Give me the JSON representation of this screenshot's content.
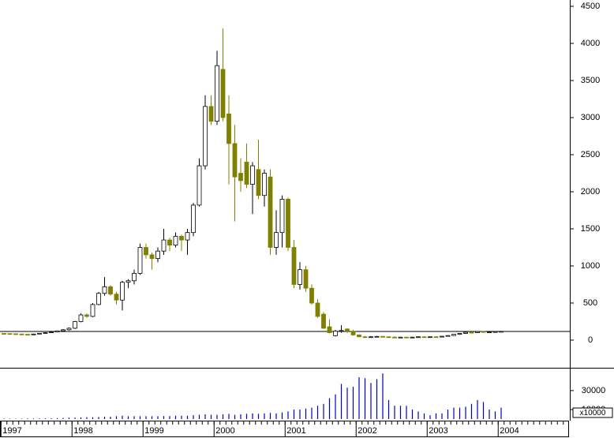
{
  "chart_data": {
    "type": "candlestick",
    "open": [
      90,
      88,
      86,
      82,
      78,
      75,
      82,
      92,
      100,
      110,
      125,
      140,
      160,
      250,
      340,
      320,
      480,
      630,
      720,
      620,
      540,
      780,
      800,
      900,
      1250,
      1150,
      1100,
      1200,
      1350,
      1280,
      1400,
      1350,
      1450,
      1820,
      2350,
      3150,
      2950,
      3650,
      3050,
      2650,
      2250,
      2400,
      2100,
      2300,
      1950,
      2200,
      1250,
      1450,
      1900,
      1250,
      750,
      950,
      700,
      500,
      350,
      180,
      60,
      120,
      150,
      120,
      70,
      45,
      40,
      45,
      50,
      45,
      40,
      35,
      40,
      35,
      40,
      45,
      40,
      45,
      42,
      52,
      62,
      78,
      90,
      105,
      100,
      115,
      105,
      110,
      115
    ],
    "high": [
      95,
      92,
      90,
      85,
      82,
      85,
      95,
      105,
      115,
      130,
      150,
      170,
      260,
      360,
      360,
      500,
      650,
      850,
      740,
      650,
      800,
      820,
      950,
      1300,
      1300,
      1180,
      1250,
      1500,
      1380,
      1450,
      1420,
      1500,
      1850,
      2450,
      3300,
      3300,
      3900,
      4200,
      3300,
      2900,
      2450,
      2650,
      2400,
      2700,
      2300,
      2300,
      1750,
      1950,
      1920,
      1350,
      1050,
      1000,
      750,
      550,
      380,
      280,
      140,
      200,
      160,
      140,
      80,
      55,
      55,
      55,
      55,
      50,
      50,
      45,
      45,
      45,
      50,
      50,
      50,
      50,
      55,
      65,
      80,
      95,
      110,
      115,
      120,
      120,
      115,
      120,
      125
    ],
    "low": [
      85,
      84,
      80,
      75,
      72,
      72,
      80,
      88,
      95,
      105,
      115,
      130,
      150,
      240,
      300,
      310,
      470,
      600,
      600,
      480,
      400,
      700,
      750,
      880,
      1100,
      950,
      1050,
      1150,
      1200,
      1250,
      1200,
      1150,
      1400,
      1800,
      2300,
      2900,
      2900,
      2950,
      2100,
      1600,
      2000,
      2050,
      1700,
      1900,
      1800,
      1150,
      1150,
      1250,
      1200,
      700,
      680,
      650,
      480,
      300,
      150,
      90,
      50,
      100,
      100,
      60,
      40,
      35,
      35,
      40,
      40,
      35,
      30,
      30,
      30,
      30,
      35,
      35,
      35,
      38,
      40,
      50,
      58,
      72,
      85,
      95,
      95,
      100,
      95,
      100,
      108
    ],
    "close": [
      88,
      86,
      82,
      78,
      75,
      82,
      92,
      100,
      110,
      125,
      140,
      160,
      250,
      340,
      320,
      480,
      630,
      720,
      620,
      540,
      780,
      800,
      900,
      1250,
      1150,
      1100,
      1200,
      1350,
      1280,
      1400,
      1350,
      1450,
      1820,
      2350,
      3150,
      2950,
      3700,
      3000,
      2650,
      2200,
      2150,
      2100,
      2350,
      1950,
      2250,
      1250,
      1450,
      1900,
      1250,
      750,
      950,
      700,
      500,
      320,
      160,
      100,
      120,
      130,
      120,
      70,
      45,
      40,
      45,
      50,
      45,
      40,
      35,
      40,
      35,
      40,
      45,
      40,
      45,
      42,
      52,
      62,
      78,
      90,
      105,
      100,
      115,
      105,
      110,
      115,
      118
    ],
    "volume": [
      500,
      500,
      500,
      500,
      600,
      600,
      700,
      800,
      900,
      1000,
      1200,
      1500,
      1500,
      1800,
      2000,
      2000,
      2200,
      2500,
      2500,
      3000,
      3500,
      3000,
      3000,
      3000,
      3000,
      3000,
      3000,
      3200,
      3200,
      3500,
      3500,
      3500,
      4000,
      4500,
      5000,
      4500,
      4500,
      5000,
      5500,
      4500,
      5000,
      5500,
      6000,
      5500,
      6000,
      6500,
      6000,
      7000,
      8000,
      10000,
      10000,
      11000,
      12000,
      14000,
      16000,
      22000,
      26000,
      37000,
      33000,
      34000,
      44000,
      43000,
      38000,
      42000,
      48000,
      20000,
      14000,
      14000,
      14000,
      10000,
      8000,
      6000,
      4000,
      6000,
      6000,
      10000,
      12000,
      12000,
      13000,
      16000,
      20000,
      18000,
      10000,
      8000,
      12000
    ],
    "up_color": "#ffffff",
    "down_color": "#808000",
    "volume_color": "#0000cc",
    "ylim": [
      -362,
      4585
    ],
    "yticks": [
      0,
      500,
      1000,
      1500,
      2000,
      2500,
      3000,
      3500,
      4000,
      4500
    ],
    "hline": 117,
    "vlim": [
      0,
      54000
    ],
    "vticks": [
      10000,
      30000
    ],
    "volume_unit": "x10000",
    "xticks": [
      {
        "value": 0,
        "label": "1997"
      },
      {
        "value": 12,
        "label": "1998"
      },
      {
        "value": 24,
        "label": "1999"
      },
      {
        "value": 36,
        "label": "2000"
      },
      {
        "value": 48,
        "label": "2001"
      },
      {
        "value": 60,
        "label": "2002"
      },
      {
        "value": 72,
        "label": "2003"
      },
      {
        "value": 84,
        "label": "2004"
      }
    ]
  }
}
